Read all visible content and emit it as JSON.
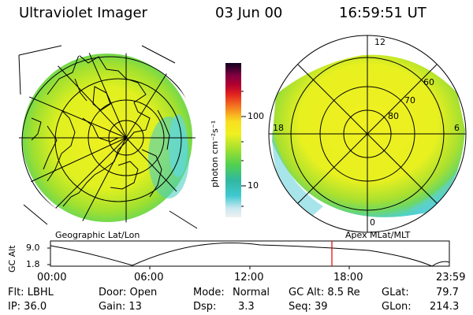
{
  "header": {
    "instrument": "Ultraviolet Imager",
    "date": "03 Jun 00",
    "time": "16:59:51 UT"
  },
  "colorbar": {
    "unit_label": "photon cm⁻²s⁻¹",
    "ticks": [
      "100",
      "10"
    ]
  },
  "left_panel": {
    "caption": "Geographic Lat/Lon"
  },
  "right_panel": {
    "caption": "Apex MLat/MLT",
    "mlt_labels": {
      "top": "12",
      "left": "18",
      "right": "6",
      "bottom": "0"
    },
    "lat_labels": [
      "60",
      "70",
      "80"
    ]
  },
  "altitude_plot": {
    "axis_label": "GC Alt",
    "y_ticks": [
      "9.0",
      "1.8"
    ],
    "x_ticks": [
      "00:00",
      "06:00",
      "12:00",
      "18:00",
      "23:59"
    ],
    "marker_time": "16:59:51"
  },
  "status": {
    "filter": "Flt: LBHL",
    "ip": "IP: 36.0",
    "door": "Door: Open",
    "gain": "Gain: 13",
    "mode_label": "Mode:",
    "mode_value": "Normal",
    "dsp_label": "Dsp:",
    "dsp_value": "3.3",
    "gc_alt": "GC Alt: 8.5 Re",
    "seq": "Seq: 39",
    "glat_label": "GLat:",
    "glat_value": "79.7",
    "glon_label": "GLon:",
    "glon_value": "214.3"
  },
  "colors": {
    "aurora_yellow": "#f0f020",
    "aurora_green": "#80e040",
    "aurora_cyan": "#40d8d0",
    "marker_red": "#e00000"
  }
}
